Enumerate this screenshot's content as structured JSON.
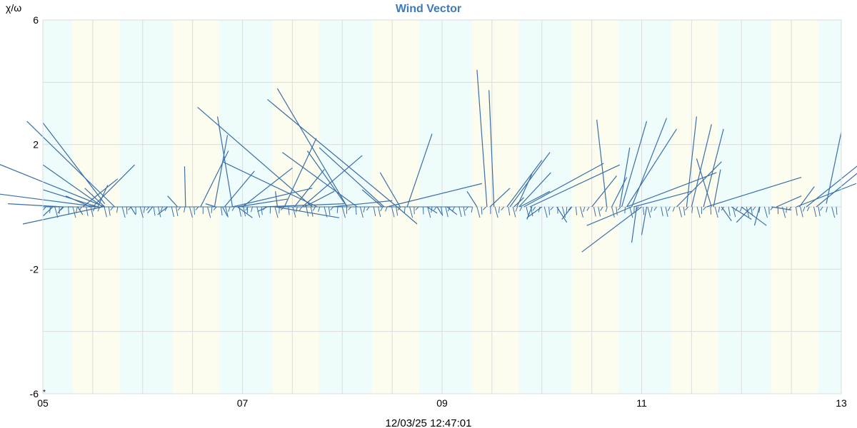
{
  "chart_data": {
    "type": "line",
    "title": "Wind Vector",
    "ylabel": "χ/ω",
    "xlabel": "",
    "footer": "12/03/25 12:47:01",
    "ylim": [
      -6,
      6
    ],
    "xlim": [
      5,
      13
    ],
    "yticks": [
      6,
      2,
      -2,
      -6
    ],
    "xticks": [
      {
        "x": 5,
        "label": "05"
      },
      {
        "x": 7,
        "label": "07"
      },
      {
        "x": 9,
        "label": "09"
      },
      {
        "x": 11,
        "label": "11"
      },
      {
        "x": 13,
        "label": "13"
      }
    ],
    "corner_mark": "*",
    "grid": true,
    "colors": {
      "title": "#3d7ab8",
      "vector": "#3a6fa6",
      "band_cyan": "#effcfc",
      "band_yellow": "#fdfdef",
      "grid": "#dcdcdc"
    },
    "bands": [
      {
        "from": 5.0,
        "to": 5.3,
        "color": "cyan"
      },
      {
        "from": 5.3,
        "to": 5.77,
        "color": "yellow"
      },
      {
        "from": 5.77,
        "to": 6.3,
        "color": "cyan"
      },
      {
        "from": 6.3,
        "to": 6.77,
        "color": "yellow"
      },
      {
        "from": 6.77,
        "to": 7.3,
        "color": "cyan"
      },
      {
        "from": 7.3,
        "to": 7.77,
        "color": "yellow"
      },
      {
        "from": 7.77,
        "to": 8.3,
        "color": "cyan"
      },
      {
        "from": 8.3,
        "to": 8.77,
        "color": "yellow"
      },
      {
        "from": 8.77,
        "to": 9.3,
        "color": "cyan"
      },
      {
        "from": 9.3,
        "to": 9.77,
        "color": "yellow"
      },
      {
        "from": 9.77,
        "to": 10.3,
        "color": "cyan"
      },
      {
        "from": 10.3,
        "to": 10.77,
        "color": "yellow"
      },
      {
        "from": 10.77,
        "to": 11.3,
        "color": "cyan"
      },
      {
        "from": 11.3,
        "to": 11.77,
        "color": "yellow"
      },
      {
        "from": 11.77,
        "to": 12.3,
        "color": "cyan"
      },
      {
        "from": 12.3,
        "to": 12.77,
        "color": "yellow"
      },
      {
        "from": 12.77,
        "to": 13.0,
        "color": "cyan"
      }
    ],
    "vectors": [
      [
        5.2,
        0,
        -0.55,
        0.1
      ],
      [
        5.72,
        0,
        -0.88,
        2.75
      ],
      [
        5.62,
        0,
        -1.12,
        1.45
      ],
      [
        5.55,
        0,
        -1.2,
        0.5
      ],
      [
        5.6,
        0,
        -0.8,
        -0.55
      ],
      [
        5.5,
        0,
        0.42,
        1.35
      ],
      [
        5.4,
        0,
        0.35,
        0.9
      ],
      [
        5.62,
        0,
        -0.2,
        0.6
      ],
      [
        5.48,
        0,
        -0.25,
        0.35
      ],
      [
        5.55,
        0,
        0.1,
        0.7
      ],
      [
        5.3,
        0,
        -0.05,
        0.0
      ],
      [
        5.1,
        0,
        -0.1,
        -0.3
      ],
      [
        5.2,
        0,
        -0.05,
        -0.2
      ],
      [
        5.35,
        0,
        0.05,
        -0.25
      ],
      [
        5.88,
        0,
        0.05,
        -0.25
      ],
      [
        6.1,
        0,
        -0.05,
        -0.2
      ],
      [
        6.25,
        0,
        -0.1,
        -0.25
      ],
      [
        6.35,
        0,
        -0.1,
        0.35
      ],
      [
        6.43,
        0,
        -0.01,
        1.3
      ],
      [
        6.58,
        0,
        0.28,
        1.8
      ],
      [
        6.72,
        0,
        0.13,
        2.3
      ],
      [
        6.82,
        0,
        0.3,
        1.15
      ],
      [
        7.0,
        0,
        0.5,
        1.25
      ],
      [
        6.9,
        0,
        0.8,
        0.6
      ],
      [
        6.95,
        0,
        0.5,
        0.25
      ],
      [
        6.9,
        0,
        -0.15,
        2.9
      ],
      [
        6.73,
        0,
        -0.1,
        0.1
      ],
      [
        6.8,
        0,
        0.05,
        -0.3
      ],
      [
        6.95,
        0,
        0.15,
        -0.35
      ],
      [
        7.05,
        0,
        0.0,
        -0.2
      ],
      [
        7.25,
        0,
        -0.1,
        -0.15
      ],
      [
        7.33,
        0,
        0.64,
        -0.35
      ],
      [
        7.7,
        0,
        -1.15,
        3.2
      ],
      [
        7.75,
        0,
        -0.95,
        1.45
      ],
      [
        8.05,
        0,
        -0.7,
        3.8
      ],
      [
        8.05,
        0,
        -0.4,
        1.8
      ],
      [
        8.55,
        0,
        -1.3,
        3.45
      ],
      [
        8.42,
        0,
        -0.65,
        1.9
      ],
      [
        8.58,
        0,
        -0.2,
        1.1
      ],
      [
        8.4,
        0,
        -0.2,
        0.55
      ],
      [
        8.15,
        0,
        -0.75,
        1.75
      ],
      [
        7.62,
        0,
        0.3,
        0.5
      ],
      [
        7.52,
        0,
        0.3,
        1.2
      ],
      [
        7.9,
        0,
        0.6,
        0.2
      ],
      [
        7.42,
        0,
        0.32,
        2.2
      ],
      [
        7.6,
        0,
        0.6,
        1.65
      ],
      [
        7.35,
        0,
        -0.02,
        0.5
      ],
      [
        8.65,
        0,
        0.25,
        2.35
      ],
      [
        8.45,
        0,
        0.95,
        0.75
      ],
      [
        8.55,
        0,
        0.2,
        -0.55
      ],
      [
        7.2,
        0,
        0.82,
        0.1
      ],
      [
        8.85,
        0,
        0.1,
        -0.2
      ],
      [
        8.95,
        0,
        0.05,
        -0.25
      ],
      [
        9.05,
        0,
        0.1,
        -0.25
      ],
      [
        9.45,
        0,
        -0.1,
        4.4
      ],
      [
        9.52,
        0,
        -0.05,
        3.75
      ],
      [
        9.65,
        0,
        0.35,
        1.5
      ],
      [
        9.75,
        0,
        0.15,
        1.05
      ],
      [
        9.68,
        0,
        0.4,
        1.75
      ],
      [
        9.77,
        0,
        0.32,
        1.1
      ],
      [
        9.78,
        0,
        0.3,
        0.5
      ],
      [
        9.48,
        0,
        0.2,
        0.6
      ],
      [
        9.35,
        0,
        -0.1,
        0.5
      ],
      [
        9.72,
        0,
        0.1,
        0.3
      ],
      [
        9.82,
        0,
        0.8,
        1.4
      ],
      [
        9.88,
        0,
        0.9,
        1.35
      ],
      [
        9.9,
        0,
        -0.05,
        -0.4
      ],
      [
        10.0,
        0,
        -0.15,
        -0.35
      ],
      [
        10.15,
        0,
        0.1,
        -0.5
      ],
      [
        10.3,
        0,
        -0.1,
        -0.4
      ],
      [
        10.5,
        0,
        0.25,
        1.0
      ],
      [
        10.65,
        0,
        -0.1,
        2.8
      ],
      [
        10.7,
        0,
        0.15,
        0.95
      ],
      [
        10.78,
        0,
        0.1,
        1.9
      ],
      [
        10.8,
        0,
        0.25,
        2.75
      ],
      [
        10.85,
        0,
        0.5,
        2.5
      ],
      [
        10.9,
        0,
        0.35,
        2.85
      ],
      [
        10.92,
        0,
        0.58,
        0.5
      ],
      [
        10.85,
        0,
        0.9,
        1.1
      ],
      [
        11.0,
        0,
        -0.6,
        -1.45
      ],
      [
        10.95,
        0,
        -0.05,
        -1.15
      ],
      [
        11.05,
        0,
        -0.05,
        -0.9
      ],
      [
        10.9,
        0,
        -0.45,
        -0.6
      ],
      [
        11.35,
        0,
        0.45,
        1.45
      ],
      [
        11.45,
        0,
        0.1,
        2.9
      ],
      [
        11.5,
        0,
        0.2,
        2.65
      ],
      [
        11.62,
        0,
        0.2,
        2.5
      ],
      [
        11.72,
        0,
        0.07,
        1.2
      ],
      [
        11.7,
        0,
        -0.15,
        1.55
      ],
      [
        11.65,
        0,
        0.95,
        0.95
      ],
      [
        11.8,
        0,
        0.1,
        -0.45
      ],
      [
        11.9,
        0,
        0.2,
        -0.4
      ],
      [
        12.0,
        0,
        0.25,
        -0.6
      ],
      [
        12.18,
        0,
        -0.05,
        -0.6
      ],
      [
        12.1,
        0,
        -0.15,
        -0.5
      ],
      [
        12.35,
        0,
        0.25,
        0.35
      ],
      [
        12.58,
        0,
        0.15,
        0.65
      ],
      [
        12.55,
        0,
        0.6,
        0.75
      ],
      [
        12.65,
        0,
        0.7,
        1.8
      ],
      [
        12.75,
        0,
        0.93,
        2.45
      ],
      [
        12.3,
        0,
        0.2,
        -0.1
      ]
    ],
    "edge_segments": [
      [
        5.0,
        2.7,
        5.62,
        0.1
      ],
      [
        5.0,
        1.35,
        5.6,
        0.0
      ],
      [
        5.0,
        0.55,
        5.55,
        0.0
      ],
      [
        12.85,
        0.1,
        13.0,
        2.4
      ]
    ]
  }
}
